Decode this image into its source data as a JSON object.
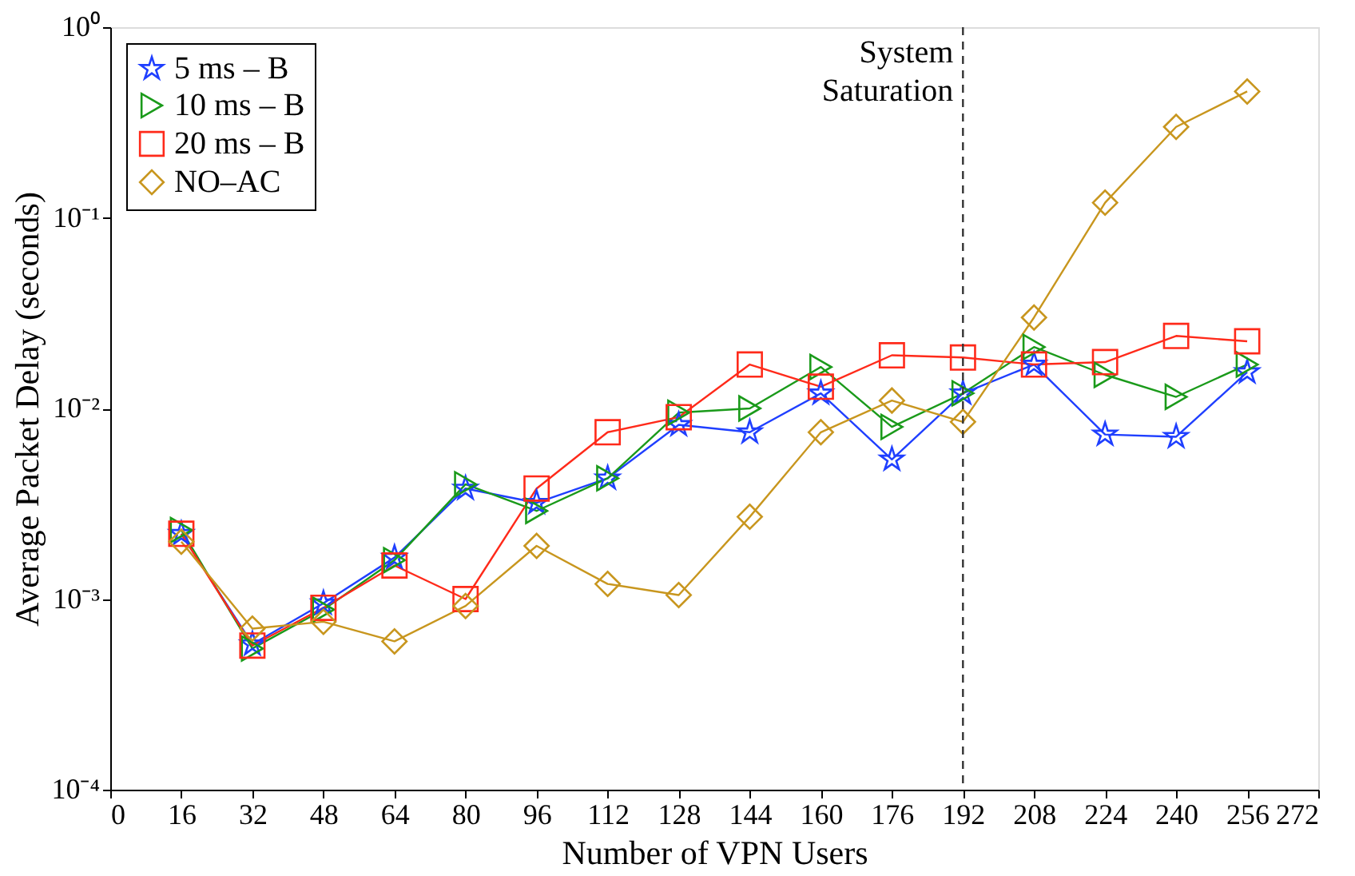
{
  "chart_data": {
    "type": "line",
    "xlabel": "Number of VPN Users",
    "ylabel": "Average Packet Delay (seconds)",
    "x": [
      16,
      32,
      48,
      64,
      80,
      96,
      112,
      128,
      144,
      160,
      176,
      192,
      208,
      224,
      240,
      256
    ],
    "series": [
      {
        "name": "5 ms – B",
        "color": "#1f3fff",
        "marker": "star",
        "values": [
          0.0022,
          0.00058,
          0.00095,
          0.00165,
          0.0038,
          0.0032,
          0.0043,
          0.0082,
          0.0075,
          0.012,
          0.0054,
          0.012,
          0.017,
          0.0073,
          0.0071,
          0.0155
        ]
      },
      {
        "name": "10 ms – B",
        "color": "#1a9a1a",
        "marker": "triangle",
        "values": [
          0.0023,
          0.00055,
          0.00088,
          0.0016,
          0.004,
          0.0029,
          0.0043,
          0.0095,
          0.01,
          0.0165,
          0.008,
          0.012,
          0.021,
          0.015,
          0.0115,
          0.017
        ]
      },
      {
        "name": "20 ms – B",
        "color": "#ff2a1a",
        "marker": "square",
        "values": [
          0.0022,
          0.00057,
          0.0009,
          0.0015,
          0.001,
          0.0038,
          0.0075,
          0.009,
          0.017,
          0.013,
          0.019,
          0.0185,
          0.017,
          0.0175,
          0.024,
          0.0225
        ]
      },
      {
        "name": "NO–AC",
        "color": "#c8961e",
        "marker": "diamond",
        "values": [
          0.002,
          0.0007,
          0.00076,
          0.0006,
          0.00092,
          0.0019,
          0.0012,
          0.00105,
          0.0027,
          0.0075,
          0.011,
          0.0085,
          0.03,
          0.12,
          0.3,
          0.46
        ]
      }
    ],
    "log": "y",
    "xlim": [
      0,
      272
    ],
    "xticks": [
      0,
      16,
      32,
      48,
      64,
      80,
      96,
      112,
      128,
      144,
      160,
      176,
      192,
      208,
      224,
      240,
      256,
      272
    ],
    "ylim": [
      0.0001,
      1
    ],
    "yticks": [
      {
        "value": 0.0001,
        "label": "10⁻⁴"
      },
      {
        "value": 0.001,
        "label": "10⁻³"
      },
      {
        "value": 0.01,
        "label": "10⁻²"
      },
      {
        "value": 0.1,
        "label": "10⁻¹"
      },
      {
        "value": 1,
        "label": "10⁰"
      }
    ],
    "ref_lines": [
      {
        "axis": "x",
        "value": 192,
        "label": "System Saturation",
        "color": "#333333",
        "line_style": "dashed"
      }
    ],
    "grid": false,
    "legend": "top left"
  }
}
